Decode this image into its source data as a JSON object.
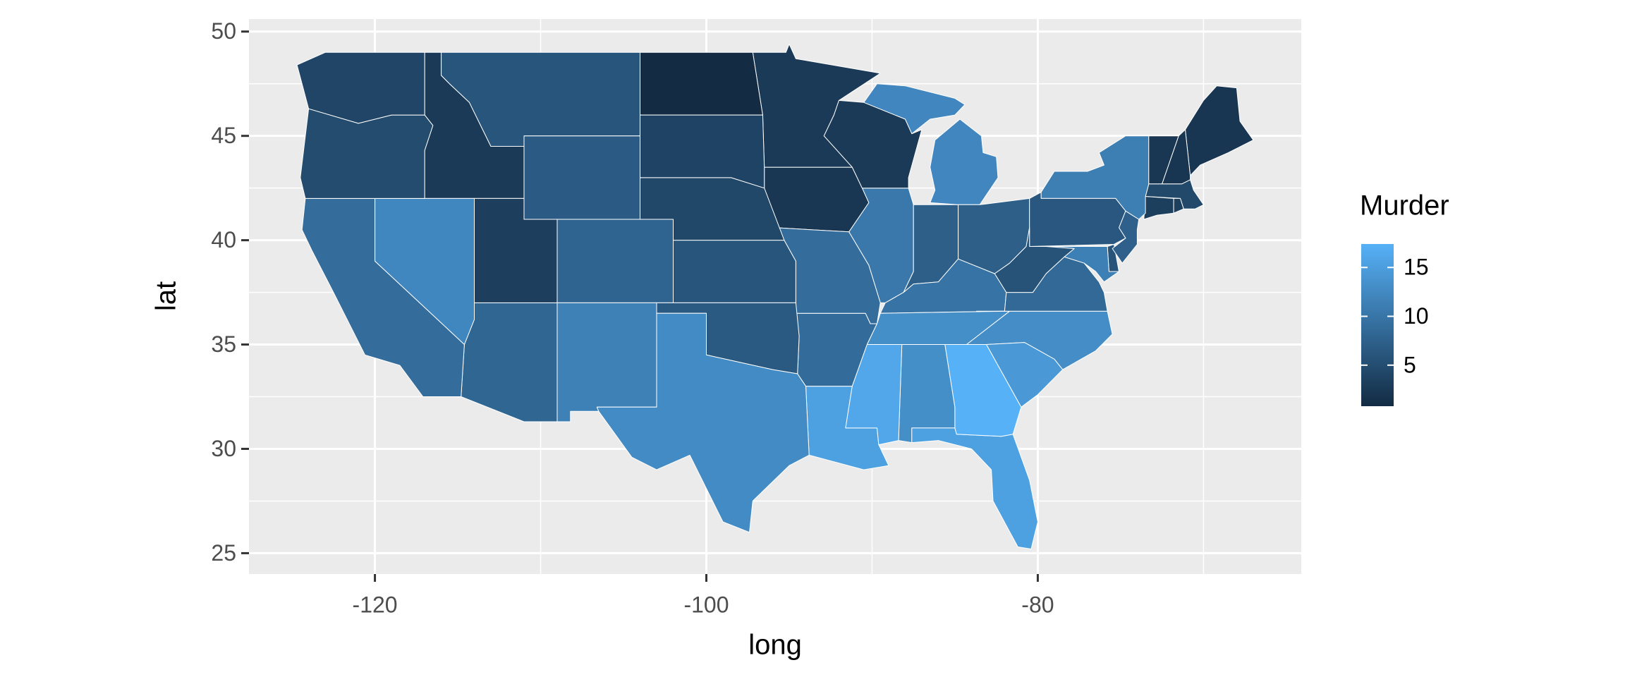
{
  "chart_data": {
    "type": "choropleth",
    "x_label": "long",
    "y_label": "lat",
    "xlim": [
      -127.6,
      -64.1
    ],
    "ylim": [
      24.0,
      50.6
    ],
    "xticks": [
      -120,
      -100,
      -80
    ],
    "yticks": [
      25,
      30,
      35,
      40,
      45,
      50
    ],
    "grid": true,
    "legend_title": "Murder",
    "color_low": "#132B43",
    "color_high": "#56B1F7",
    "legend_ticks": [
      5,
      10,
      15
    ],
    "values": [
      13.2,
      8.1,
      8.8,
      9.0,
      7.9,
      3.3,
      5.9,
      15.4,
      17.4,
      2.6,
      10.4,
      7.2,
      2.2,
      6.0,
      9.7,
      15.4,
      2.1,
      11.3,
      4.4,
      12.1,
      2.7,
      16.1,
      9.0,
      6.0,
      4.3,
      12.2,
      2.1,
      7.4,
      11.4,
      11.1,
      13.0,
      0.8,
      7.3,
      6.6,
      4.9,
      6.3,
      3.4,
      14.4,
      3.8,
      13.2,
      12.7,
      3.2,
      2.2,
      8.5,
      4.0,
      5.7,
      2.6,
      6.8
    ]
  }
}
